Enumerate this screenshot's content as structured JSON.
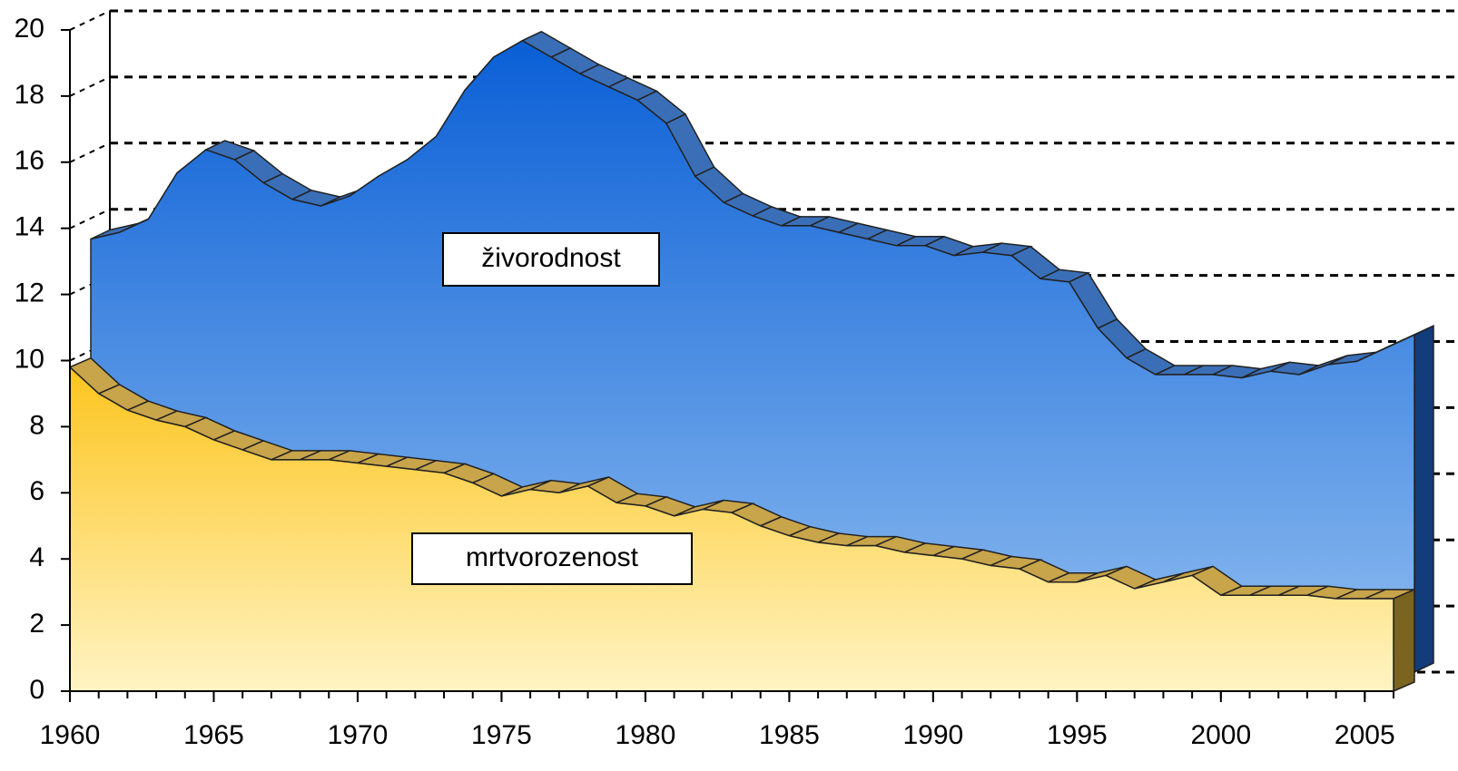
{
  "chart_data": {
    "type": "area3d",
    "x": [
      1960,
      1961,
      1962,
      1963,
      1964,
      1965,
      1966,
      1967,
      1968,
      1969,
      1970,
      1971,
      1972,
      1973,
      1974,
      1975,
      1976,
      1977,
      1978,
      1979,
      1980,
      1981,
      1982,
      1983,
      1984,
      1985,
      1986,
      1987,
      1988,
      1989,
      1990,
      1991,
      1992,
      1993,
      1994,
      1995,
      1996,
      1997,
      1998,
      1999,
      2000,
      2001,
      2002,
      2003,
      2004,
      2005,
      2006
    ],
    "series": [
      {
        "name": "živorodnost",
        "color": "#2f6fd0",
        "values": [
          13.1,
          13.3,
          13.7,
          15.1,
          15.8,
          15.5,
          14.8,
          14.3,
          14.1,
          14.4,
          15.0,
          15.5,
          16.2,
          17.6,
          18.6,
          19.1,
          18.6,
          18.1,
          17.7,
          17.3,
          16.6,
          15.0,
          14.2,
          13.8,
          13.5,
          13.5,
          13.3,
          13.1,
          12.9,
          12.9,
          12.6,
          12.7,
          12.6,
          11.9,
          11.8,
          10.4,
          9.5,
          9.0,
          9.0,
          9.0,
          8.9,
          9.1,
          9.0,
          9.3,
          9.4,
          9.8,
          10.2
        ]
      },
      {
        "name": "mrtvorozenost",
        "color": "#f7c62e",
        "values": [
          9.8,
          9.0,
          8.5,
          8.2,
          8.0,
          7.6,
          7.3,
          7.0,
          7.0,
          7.0,
          6.9,
          6.8,
          6.7,
          6.6,
          6.3,
          5.9,
          6.1,
          6.0,
          6.2,
          5.7,
          5.6,
          5.3,
          5.5,
          5.4,
          5.0,
          4.7,
          4.5,
          4.4,
          4.4,
          4.2,
          4.1,
          4.0,
          3.8,
          3.7,
          3.3,
          3.3,
          3.5,
          3.1,
          3.3,
          3.5,
          2.9,
          2.9,
          2.9,
          2.9,
          2.8,
          2.8,
          2.8
        ]
      }
    ],
    "xlim": [
      1960,
      2006
    ],
    "xticks": [
      1960,
      1965,
      1970,
      1975,
      1980,
      1985,
      1990,
      1995,
      2000,
      2005
    ],
    "ylim": [
      0,
      20
    ],
    "yticks": [
      0,
      2,
      4,
      6,
      8,
      10,
      12,
      14,
      16,
      18,
      20
    ],
    "grid": true
  }
}
